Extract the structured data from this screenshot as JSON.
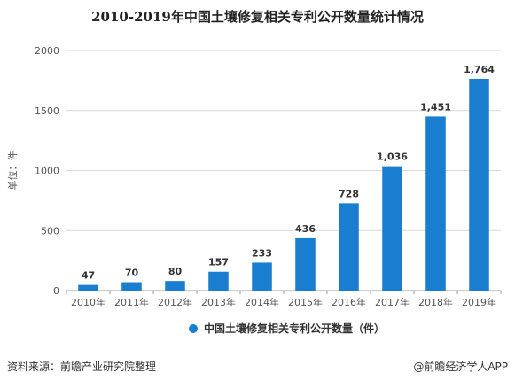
{
  "footer": {
    "source": "资料来源：前瞻产业研究院整理",
    "credit": "@前瞻经济学人APP"
  },
  "colors": {
    "bar": "#1a7ed0",
    "grid": "#d9d9d9",
    "axis": "#999999"
  },
  "chart_data": {
    "type": "bar",
    "title": "2010-2019年中国土壤修复相关专利公开数量统计情况",
    "ylabel": "单位：件",
    "xlabel": "",
    "categories": [
      "2010年",
      "2011年",
      "2012年",
      "2013年",
      "2014年",
      "2015年",
      "2016年",
      "2017年",
      "2018年",
      "2019年"
    ],
    "series": [
      {
        "name": "中国土壤修复相关专利公开数量（件）",
        "values": [
          47,
          70,
          80,
          157,
          233,
          436,
          728,
          1036,
          1451,
          1764
        ],
        "labels": [
          "47",
          "70",
          "80",
          "157",
          "233",
          "436",
          "728",
          "1,036",
          "1,451",
          "1,764"
        ]
      }
    ],
    "ylim": [
      0,
      2000
    ],
    "yticks": [
      0,
      500,
      1000,
      1500,
      2000
    ],
    "grid": true,
    "legend": "bottom"
  }
}
